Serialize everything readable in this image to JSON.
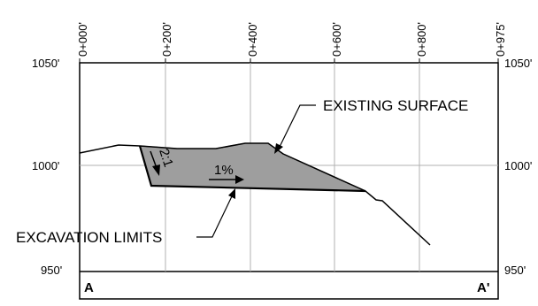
{
  "stations": [
    "0+000'",
    "0+200'",
    "0+400'",
    "0+600'",
    "0+800'",
    "0+975'"
  ],
  "elevations": {
    "top_left": "1050'",
    "top_right": "1050'",
    "mid_left": "1000'",
    "mid_right": "1000'",
    "bottom_left": "950'",
    "bottom_right": "950'"
  },
  "callouts": {
    "existing_surface": "EXISTING SURFACE",
    "excavation_limits": "EXCAVATION LIMITS"
  },
  "slope_label": "2:1",
  "grade_label": "1%",
  "section_labels": {
    "start": "A",
    "end": "A'"
  },
  "colors": {
    "excavation_fill": "#9e9e9e",
    "grid": "#b0b0b0",
    "line": "#000000"
  }
}
